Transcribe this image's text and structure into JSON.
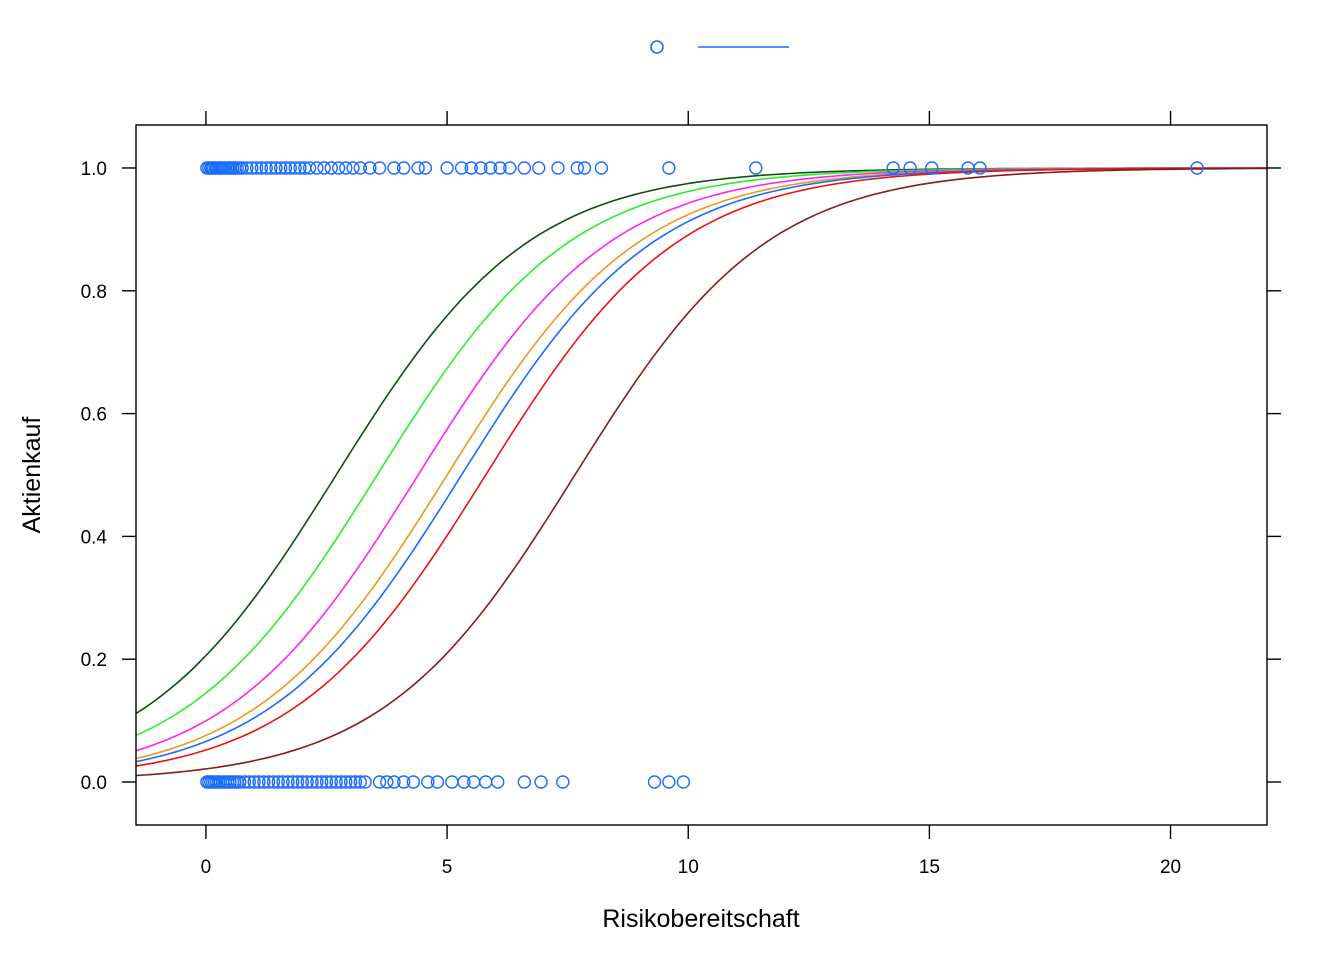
{
  "chart_data": {
    "type": "scatter",
    "title": "",
    "xlabel": "Risikobereitschaft",
    "ylabel": "Aktienkauf",
    "xlim": [
      -1.45,
      22.0
    ],
    "ylim": [
      -0.07,
      1.07
    ],
    "x_ticks": [
      "0",
      "5",
      "10",
      "15",
      "20"
    ],
    "y_ticks": [
      "0.0",
      "0.2",
      "0.4",
      "0.6",
      "0.8",
      "1.0"
    ],
    "x_tick_values": [
      0,
      5,
      10,
      15,
      20
    ],
    "y_tick_values": [
      0.0,
      0.2,
      0.4,
      0.6,
      0.8,
      1.0
    ],
    "grid": false,
    "legend_position": "top-center",
    "legend": {
      "point_color": "#1a6cff",
      "line_color": "#1a6cff"
    },
    "points": {
      "color": "#1a6cff",
      "y1_x": [
        0.02,
        0.06,
        0.1,
        0.13,
        0.16,
        0.2,
        0.23,
        0.27,
        0.3,
        0.33,
        0.37,
        0.4,
        0.44,
        0.48,
        0.52,
        0.56,
        0.6,
        0.65,
        0.7,
        0.75,
        0.85,
        0.95,
        1.05,
        1.15,
        1.25,
        1.35,
        1.45,
        1.55,
        1.65,
        1.75,
        1.85,
        1.95,
        2.05,
        2.15,
        2.3,
        2.45,
        2.6,
        2.75,
        2.9,
        3.05,
        3.2,
        3.4,
        3.6,
        3.9,
        4.1,
        4.4,
        4.55,
        5.0,
        5.3,
        5.5,
        5.7,
        5.9,
        6.1,
        6.3,
        6.6,
        6.9,
        7.3,
        7.7,
        7.85,
        8.2,
        9.6,
        11.4,
        14.25,
        14.6,
        15.05,
        15.8,
        16.05,
        20.55
      ],
      "y0_x": [
        0.02,
        0.06,
        0.1,
        0.14,
        0.18,
        0.22,
        0.26,
        0.3,
        0.35,
        0.4,
        0.45,
        0.5,
        0.55,
        0.6,
        0.65,
        0.7,
        0.8,
        0.9,
        1.0,
        1.1,
        1.2,
        1.3,
        1.4,
        1.5,
        1.6,
        1.7,
        1.8,
        1.9,
        2.0,
        2.1,
        2.2,
        2.3,
        2.4,
        2.5,
        2.6,
        2.7,
        2.8,
        2.9,
        3.0,
        3.1,
        3.2,
        3.3,
        3.6,
        3.75,
        3.9,
        4.1,
        4.3,
        4.6,
        4.8,
        5.1,
        5.35,
        5.55,
        5.8,
        6.05,
        6.6,
        6.95,
        7.4,
        9.3,
        9.6,
        9.9
      ],
      "y1_value": 1.0,
      "y0_value": 0.0
    },
    "series": [
      {
        "color": "#0f4f0f",
        "x_mid": 2.7,
        "slope": 0.5
      },
      {
        "color": "#29f029",
        "x_mid": 3.55,
        "slope": 0.5
      },
      {
        "color": "#ff22ff",
        "x_mid": 4.4,
        "slope": 0.5
      },
      {
        "color": "#f2961e",
        "x_mid": 5.0,
        "slope": 0.5
      },
      {
        "color": "#1a6cff",
        "x_mid": 5.3,
        "slope": 0.5
      },
      {
        "color": "#ee1111",
        "x_mid": 5.8,
        "slope": 0.5
      },
      {
        "color": "#8b1a1a",
        "x_mid": 7.65,
        "slope": 0.5
      }
    ]
  }
}
